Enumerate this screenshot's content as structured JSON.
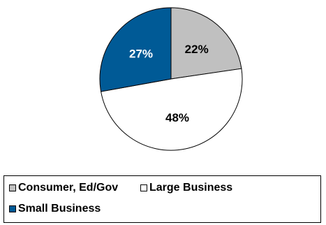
{
  "chart_data": {
    "type": "pie",
    "title": "",
    "slices": [
      {
        "name": "Consumer, Ed/Gov",
        "value": 22,
        "label": "22%",
        "color": "#c0c0c0"
      },
      {
        "name": "Large Business",
        "value": 48,
        "label": "48%",
        "color": "#ffffff"
      },
      {
        "name": "Small Business",
        "value": 27,
        "label": "27%",
        "color": "#005a96"
      }
    ],
    "legend_placement": "bottom"
  },
  "colors": {
    "slice_border": "#000000",
    "dark_label": "#000000",
    "light_label": "#ffffff"
  }
}
